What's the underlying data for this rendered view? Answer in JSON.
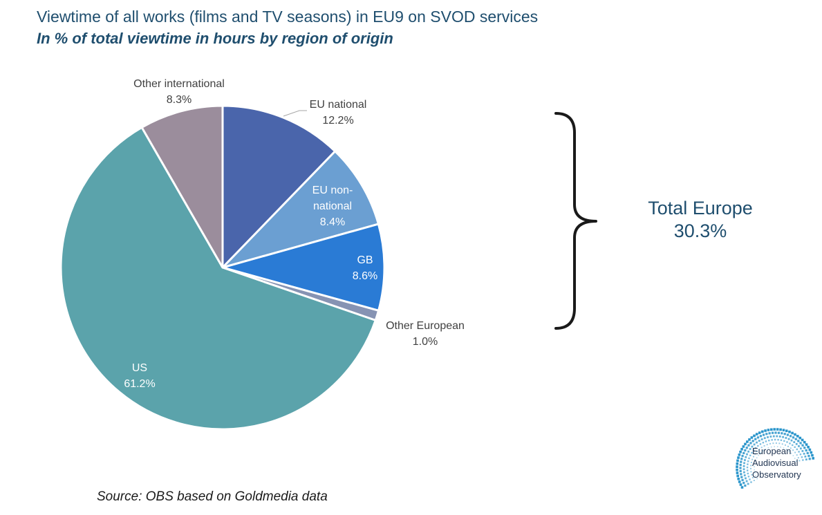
{
  "header": {
    "title": "Viewtime of all works (films and TV seasons) in EU9 on SVOD services",
    "subtitle": "In % of total viewtime in hours by region of origin"
  },
  "chart_data": {
    "type": "pie",
    "title": "Viewtime of all works (films and TV seasons) in EU9 on SVOD services",
    "subtitle": "In % of total viewtime in hours by region of origin",
    "unit": "%",
    "slices": [
      {
        "label": "EU national",
        "label_lines": [
          "EU national"
        ],
        "value": 12.2,
        "value_text": "12.2%",
        "color": "#4a65ab",
        "label_position": "outside"
      },
      {
        "label": "EU non-national",
        "label_lines": [
          "EU non-",
          "national"
        ],
        "value": 8.4,
        "value_text": "8.4%",
        "color": "#6b9fd2",
        "label_position": "inside"
      },
      {
        "label": "GB",
        "label_lines": [
          "GB"
        ],
        "value": 8.6,
        "value_text": "8.6%",
        "color": "#2a7bd5",
        "label_position": "inside"
      },
      {
        "label": "Other European",
        "label_lines": [
          "Other European"
        ],
        "value": 1.0,
        "value_text": "1.0%",
        "color": "#8693b3",
        "label_position": "outside"
      },
      {
        "label": "US",
        "label_lines": [
          "US"
        ],
        "value": 61.2,
        "value_text": "61.2%",
        "color": "#5ba3ab",
        "label_position": "inside"
      },
      {
        "label": "Other international",
        "label_lines": [
          "Other international"
        ],
        "value": 8.3,
        "value_text": "8.3%",
        "color": "#9b8d9c",
        "label_position": "outside"
      }
    ],
    "start_angle": "12 o'clock",
    "direction": "clockwise",
    "bracket": {
      "label": "Total Europe",
      "value": 30.3,
      "value_text": "30.3%",
      "covers": [
        "EU national",
        "EU non-national",
        "GB",
        "Other European"
      ]
    }
  },
  "footer": {
    "source": "Source: OBS based on Goldmedia data"
  },
  "logo": {
    "lines": [
      "European",
      "Audiovisual",
      "Observatory"
    ],
    "color": "#1f8fc8"
  }
}
